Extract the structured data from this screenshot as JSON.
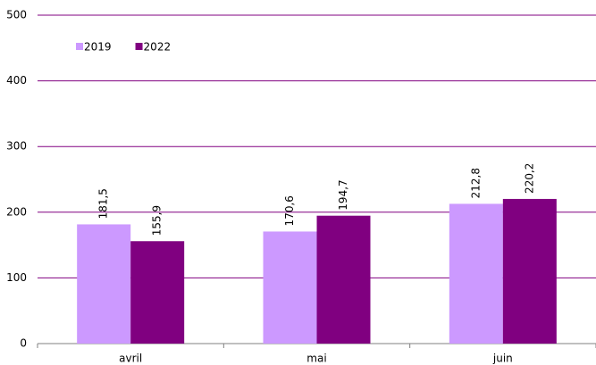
{
  "chart_data": {
    "type": "bar",
    "categories": [
      "avril",
      "mai",
      "juin"
    ],
    "series": [
      {
        "name": "2019",
        "color": "#cc99ff",
        "values": [
          181.5,
          170.6,
          212.8
        ],
        "value_labels": [
          "181,5",
          "170,6",
          "212,8"
        ]
      },
      {
        "name": "2022",
        "color": "#800080",
        "values": [
          155.9,
          194.7,
          220.2
        ],
        "value_labels": [
          "155,9",
          "194,7",
          "220,2"
        ]
      }
    ],
    "ylim": [
      0,
      500
    ],
    "yticks": [
      0,
      100,
      200,
      300,
      400,
      500
    ],
    "grid": true,
    "legend": "top-left"
  }
}
